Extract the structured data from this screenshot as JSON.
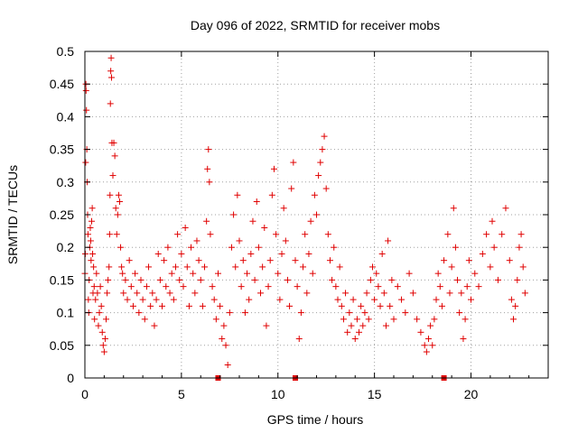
{
  "chart_data": {
    "type": "scatter",
    "title": "Day 096 of 2022, SRMTID for receiver mobs",
    "xlabel": "GPS time / hours",
    "ylabel": "SRMTID / TECUs",
    "xlim": [
      0,
      24
    ],
    "ylim": [
      0,
      0.5
    ],
    "x_ticks": [
      0,
      5,
      10,
      15,
      20
    ],
    "y_ticks": [
      0,
      0.05,
      0.1,
      0.15,
      0.2,
      0.25,
      0.3,
      0.35,
      0.4,
      0.45,
      0.5
    ],
    "grid": true,
    "marker": "+",
    "color": "#e00000",
    "zero_markers_x": [
      6.9,
      10.9,
      18.6
    ],
    "series": [
      {
        "name": "SRMTID",
        "note": "Approximate representative samples read from the scatter cloud",
        "points": [
          [
            0.0,
            0.16
          ],
          [
            0.02,
            0.19
          ],
          [
            0.04,
            0.33
          ],
          [
            0.05,
            0.45
          ],
          [
            0.06,
            0.44
          ],
          [
            0.08,
            0.41
          ],
          [
            0.1,
            0.35
          ],
          [
            0.12,
            0.3
          ],
          [
            0.14,
            0.25
          ],
          [
            0.16,
            0.22
          ],
          [
            0.18,
            0.12
          ],
          [
            0.2,
            0.1
          ],
          [
            0.22,
            0.15
          ],
          [
            0.25,
            0.2
          ],
          [
            0.28,
            0.23
          ],
          [
            0.3,
            0.21
          ],
          [
            0.32,
            0.18
          ],
          [
            0.35,
            0.24
          ],
          [
            0.38,
            0.26
          ],
          [
            0.4,
            0.19
          ],
          [
            0.42,
            0.13
          ],
          [
            0.45,
            0.17
          ],
          [
            0.48,
            0.14
          ],
          [
            0.5,
            0.09
          ],
          [
            0.55,
            0.12
          ],
          [
            0.6,
            0.16
          ],
          [
            0.65,
            0.13
          ],
          [
            0.7,
            0.08
          ],
          [
            0.75,
            0.1
          ],
          [
            0.8,
            0.14
          ],
          [
            0.85,
            0.11
          ],
          [
            0.9,
            0.07
          ],
          [
            0.95,
            0.05
          ],
          [
            1.0,
            0.04
          ],
          [
            1.05,
            0.06
          ],
          [
            1.1,
            0.09
          ],
          [
            1.15,
            0.13
          ],
          [
            1.2,
            0.15
          ],
          [
            1.25,
            0.17
          ],
          [
            1.28,
            0.22
          ],
          [
            1.3,
            0.28
          ],
          [
            1.32,
            0.42
          ],
          [
            1.34,
            0.47
          ],
          [
            1.36,
            0.49
          ],
          [
            1.38,
            0.46
          ],
          [
            1.4,
            0.36
          ],
          [
            1.45,
            0.31
          ],
          [
            1.5,
            0.36
          ],
          [
            1.55,
            0.34
          ],
          [
            1.6,
            0.26
          ],
          [
            1.65,
            0.22
          ],
          [
            1.7,
            0.25
          ],
          [
            1.75,
            0.28
          ],
          [
            1.8,
            0.27
          ],
          [
            1.85,
            0.2
          ],
          [
            1.9,
            0.17
          ],
          [
            1.95,
            0.16
          ],
          [
            2.0,
            0.13
          ],
          [
            2.1,
            0.15
          ],
          [
            2.2,
            0.12
          ],
          [
            2.3,
            0.18
          ],
          [
            2.4,
            0.14
          ],
          [
            2.5,
            0.11
          ],
          [
            2.6,
            0.16
          ],
          [
            2.7,
            0.13
          ],
          [
            2.8,
            0.1
          ],
          [
            2.9,
            0.15
          ],
          [
            3.0,
            0.12
          ],
          [
            3.1,
            0.09
          ],
          [
            3.2,
            0.14
          ],
          [
            3.3,
            0.17
          ],
          [
            3.4,
            0.11
          ],
          [
            3.5,
            0.13
          ],
          [
            3.6,
            0.08
          ],
          [
            3.7,
            0.12
          ],
          [
            3.8,
            0.19
          ],
          [
            3.9,
            0.15
          ],
          [
            4.0,
            0.11
          ],
          [
            4.1,
            0.18
          ],
          [
            4.2,
            0.14
          ],
          [
            4.3,
            0.2
          ],
          [
            4.4,
            0.13
          ],
          [
            4.5,
            0.16
          ],
          [
            4.6,
            0.12
          ],
          [
            4.7,
            0.17
          ],
          [
            4.8,
            0.22
          ],
          [
            4.9,
            0.15
          ],
          [
            5.0,
            0.19
          ],
          [
            5.1,
            0.14
          ],
          [
            5.2,
            0.23
          ],
          [
            5.3,
            0.17
          ],
          [
            5.4,
            0.11
          ],
          [
            5.5,
            0.2
          ],
          [
            5.6,
            0.16
          ],
          [
            5.7,
            0.13
          ],
          [
            5.8,
            0.21
          ],
          [
            5.9,
            0.18
          ],
          [
            6.0,
            0.15
          ],
          [
            6.1,
            0.11
          ],
          [
            6.2,
            0.17
          ],
          [
            6.3,
            0.24
          ],
          [
            6.35,
            0.32
          ],
          [
            6.4,
            0.35
          ],
          [
            6.45,
            0.3
          ],
          [
            6.5,
            0.22
          ],
          [
            6.6,
            0.14
          ],
          [
            6.7,
            0.12
          ],
          [
            6.8,
            0.09
          ],
          [
            6.9,
            0.16
          ],
          [
            7.0,
            0.11
          ],
          [
            7.1,
            0.06
          ],
          [
            7.2,
            0.08
          ],
          [
            7.3,
            0.05
          ],
          [
            7.4,
            0.02
          ],
          [
            7.5,
            0.1
          ],
          [
            7.6,
            0.2
          ],
          [
            7.7,
            0.25
          ],
          [
            7.8,
            0.17
          ],
          [
            7.9,
            0.28
          ],
          [
            8.0,
            0.21
          ],
          [
            8.1,
            0.14
          ],
          [
            8.2,
            0.18
          ],
          [
            8.3,
            0.1
          ],
          [
            8.4,
            0.16
          ],
          [
            8.5,
            0.12
          ],
          [
            8.6,
            0.19
          ],
          [
            8.7,
            0.24
          ],
          [
            8.8,
            0.15
          ],
          [
            8.9,
            0.27
          ],
          [
            9.0,
            0.2
          ],
          [
            9.1,
            0.13
          ],
          [
            9.2,
            0.17
          ],
          [
            9.3,
            0.23
          ],
          [
            9.4,
            0.08
          ],
          [
            9.5,
            0.14
          ],
          [
            9.6,
            0.18
          ],
          [
            9.7,
            0.28
          ],
          [
            9.8,
            0.32
          ],
          [
            9.9,
            0.22
          ],
          [
            10.0,
            0.16
          ],
          [
            10.1,
            0.12
          ],
          [
            10.2,
            0.19
          ],
          [
            10.3,
            0.26
          ],
          [
            10.4,
            0.21
          ],
          [
            10.5,
            0.15
          ],
          [
            10.6,
            0.11
          ],
          [
            10.7,
            0.29
          ],
          [
            10.8,
            0.33
          ],
          [
            10.9,
            0.18
          ],
          [
            11.0,
            0.14
          ],
          [
            11.1,
            0.06
          ],
          [
            11.2,
            0.1
          ],
          [
            11.3,
            0.17
          ],
          [
            11.4,
            0.22
          ],
          [
            11.5,
            0.13
          ],
          [
            11.6,
            0.19
          ],
          [
            11.7,
            0.24
          ],
          [
            11.8,
            0.16
          ],
          [
            11.9,
            0.28
          ],
          [
            12.0,
            0.25
          ],
          [
            12.1,
            0.31
          ],
          [
            12.2,
            0.33
          ],
          [
            12.3,
            0.35
          ],
          [
            12.4,
            0.37
          ],
          [
            12.5,
            0.29
          ],
          [
            12.6,
            0.22
          ],
          [
            12.7,
            0.18
          ],
          [
            12.8,
            0.15
          ],
          [
            12.9,
            0.2
          ],
          [
            13.0,
            0.14
          ],
          [
            13.1,
            0.12
          ],
          [
            13.2,
            0.17
          ],
          [
            13.3,
            0.11
          ],
          [
            13.4,
            0.09
          ],
          [
            13.5,
            0.13
          ],
          [
            13.6,
            0.07
          ],
          [
            13.7,
            0.1
          ],
          [
            13.8,
            0.08
          ],
          [
            13.9,
            0.12
          ],
          [
            14.0,
            0.06
          ],
          [
            14.1,
            0.09
          ],
          [
            14.2,
            0.07
          ],
          [
            14.3,
            0.11
          ],
          [
            14.4,
            0.08
          ],
          [
            14.5,
            0.1
          ],
          [
            14.6,
            0.13
          ],
          [
            14.7,
            0.09
          ],
          [
            14.8,
            0.15
          ],
          [
            14.9,
            0.17
          ],
          [
            15.0,
            0.12
          ],
          [
            15.1,
            0.16
          ],
          [
            15.2,
            0.14
          ],
          [
            15.3,
            0.11
          ],
          [
            15.4,
            0.19
          ],
          [
            15.5,
            0.13
          ],
          [
            15.6,
            0.08
          ],
          [
            15.7,
            0.21
          ],
          [
            15.8,
            0.11
          ],
          [
            15.9,
            0.15
          ],
          [
            16.0,
            0.09
          ],
          [
            16.2,
            0.14
          ],
          [
            16.4,
            0.12
          ],
          [
            16.6,
            0.1
          ],
          [
            16.8,
            0.16
          ],
          [
            17.0,
            0.13
          ],
          [
            17.2,
            0.09
          ],
          [
            17.4,
            0.07
          ],
          [
            17.6,
            0.05
          ],
          [
            17.7,
            0.04
          ],
          [
            17.8,
            0.06
          ],
          [
            17.9,
            0.08
          ],
          [
            18.0,
            0.05
          ],
          [
            18.1,
            0.09
          ],
          [
            18.2,
            0.12
          ],
          [
            18.3,
            0.16
          ],
          [
            18.4,
            0.14
          ],
          [
            18.5,
            0.11
          ],
          [
            18.6,
            0.18
          ],
          [
            18.8,
            0.22
          ],
          [
            18.9,
            0.13
          ],
          [
            19.0,
            0.17
          ],
          [
            19.1,
            0.26
          ],
          [
            19.2,
            0.2
          ],
          [
            19.3,
            0.15
          ],
          [
            19.4,
            0.1
          ],
          [
            19.5,
            0.13
          ],
          [
            19.6,
            0.06
          ],
          [
            19.7,
            0.09
          ],
          [
            19.8,
            0.14
          ],
          [
            19.9,
            0.18
          ],
          [
            20.0,
            0.12
          ],
          [
            20.2,
            0.16
          ],
          [
            20.4,
            0.14
          ],
          [
            20.6,
            0.19
          ],
          [
            20.8,
            0.22
          ],
          [
            21.0,
            0.17
          ],
          [
            21.1,
            0.24
          ],
          [
            21.2,
            0.2
          ],
          [
            21.4,
            0.15
          ],
          [
            21.6,
            0.22
          ],
          [
            21.8,
            0.26
          ],
          [
            22.0,
            0.18
          ],
          [
            22.1,
            0.12
          ],
          [
            22.2,
            0.09
          ],
          [
            22.3,
            0.11
          ],
          [
            22.4,
            0.15
          ],
          [
            22.5,
            0.2
          ],
          [
            22.6,
            0.22
          ],
          [
            22.7,
            0.17
          ],
          [
            22.8,
            0.13
          ]
        ]
      }
    ]
  }
}
